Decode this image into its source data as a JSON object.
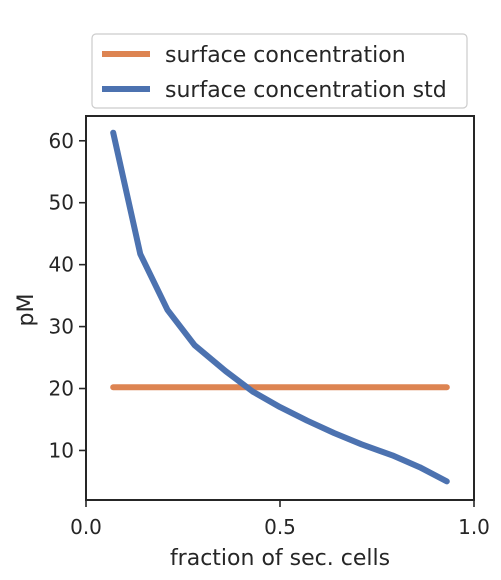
{
  "chart_data": {
    "type": "line",
    "xlabel": "fraction of sec. cells",
    "ylabel": "pM",
    "xlim": [
      0.0,
      1.0
    ],
    "ylim": [
      2,
      64
    ],
    "x_ticks": [
      0.0,
      0.5,
      1.0
    ],
    "x_tick_labels": [
      "0.0",
      "0.5",
      "1.0"
    ],
    "y_ticks": [
      10,
      20,
      30,
      40,
      50,
      60
    ],
    "y_tick_labels": [
      "10",
      "20",
      "30",
      "40",
      "50",
      "60"
    ],
    "grid": false,
    "legend_position": "above plot",
    "series": [
      {
        "name": "surface concentration",
        "color": "#dd8452",
        "x": [
          0.07,
          0.93
        ],
        "y": [
          20.2,
          20.2
        ]
      },
      {
        "name": "surface concentration std",
        "color": "#4c72b0",
        "x": [
          0.07,
          0.14,
          0.21,
          0.28,
          0.36,
          0.43,
          0.5,
          0.57,
          0.64,
          0.71,
          0.79,
          0.86,
          0.93
        ],
        "y": [
          61.3,
          41.7,
          32.7,
          27.0,
          22.8,
          19.5,
          17.0,
          14.8,
          12.8,
          11.0,
          9.2,
          7.3,
          5.0
        ]
      }
    ]
  }
}
